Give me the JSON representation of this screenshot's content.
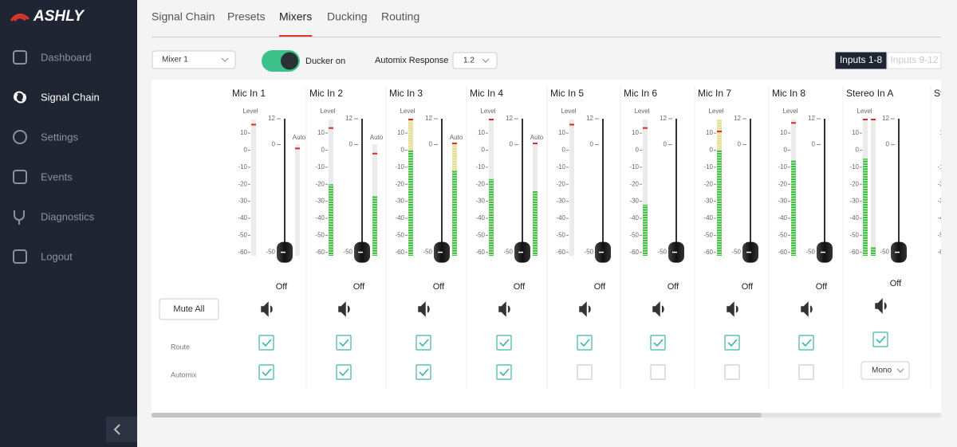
{
  "sidebar": {
    "brand": "ASHLY",
    "items": [
      "Dashboard",
      "Signal Chain",
      "Settings",
      "Events",
      "Diagnostics",
      "Logout"
    ],
    "active": 1
  },
  "tabs": {
    "items": [
      "Signal Chain",
      "Presets",
      "Mixers",
      "Ducking",
      "Routing"
    ],
    "active": 2
  },
  "toolbar": {
    "mixer": "Mixer 1",
    "ducker": "Ducker on",
    "ducker_on": true,
    "automix_response_label": "Automix Response",
    "automix_response": "1.2",
    "pages": [
      "Inputs 1-8",
      "Inputs 9-12"
    ],
    "active_page": 0
  },
  "mixer": {
    "mute_all": "Mute All",
    "route_label": "Route",
    "automix_label": "Automix",
    "level_label": "Level",
    "auto_label": "Auto",
    "meter_lim": [
      -62,
      18
    ],
    "meter_ticks": [
      10,
      0,
      -10,
      -20,
      -30,
      -40,
      -50,
      -60
    ],
    "fader_lim": [
      -52,
      12
    ],
    "fader_ticks": [
      12,
      0,
      -50
    ],
    "channels": [
      {
        "name": "Mic In 1",
        "levels": [
          null
        ],
        "peaks": [
          15
        ],
        "auto": null,
        "auto_peak": 1,
        "fader": -50,
        "fader_label": "Off",
        "route": true,
        "automix": true
      },
      {
        "name": "Mic In 2",
        "levels": [
          -20
        ],
        "peaks": [
          13
        ],
        "auto": -27,
        "auto_peak": -2,
        "fader": -50,
        "fader_label": "Off",
        "route": true,
        "automix": true
      },
      {
        "name": "Mic In 3",
        "levels": [
          18
        ],
        "peaks": [
          18
        ],
        "auto": 4,
        "auto_peak": 4,
        "fader": -50,
        "fader_label": "Off",
        "route": true,
        "automix": true
      },
      {
        "name": "Mic In 4",
        "levels": [
          -17
        ],
        "peaks": [
          18
        ],
        "auto": -24,
        "auto_peak": 4,
        "fader": -50,
        "fader_label": "Off",
        "route": true,
        "automix": true
      },
      {
        "name": "Mic In 5",
        "levels": [
          null
        ],
        "peaks": [
          15
        ],
        "fader": -50,
        "fader_label": "Off",
        "route": true,
        "automix": false
      },
      {
        "name": "Mic In 6",
        "levels": [
          -32
        ],
        "peaks": [
          13
        ],
        "fader": -50,
        "fader_label": "Off",
        "route": true,
        "automix": false
      },
      {
        "name": "Mic In 7",
        "levels": [
          18
        ],
        "peaks": [
          11
        ],
        "fader": -50,
        "fader_label": "Off",
        "route": true,
        "automix": false
      },
      {
        "name": "Mic In 8",
        "levels": [
          -6
        ],
        "peaks": [
          16
        ],
        "fader": -50,
        "fader_label": "Off",
        "route": true,
        "automix": false
      },
      {
        "name": "Stereo In A",
        "levels": [
          -5,
          -57
        ],
        "peaks": [
          18,
          18
        ],
        "fader": -50,
        "fader_label": "Off",
        "route": true,
        "mono": "Mono"
      },
      {
        "name": "St"
      }
    ]
  }
}
